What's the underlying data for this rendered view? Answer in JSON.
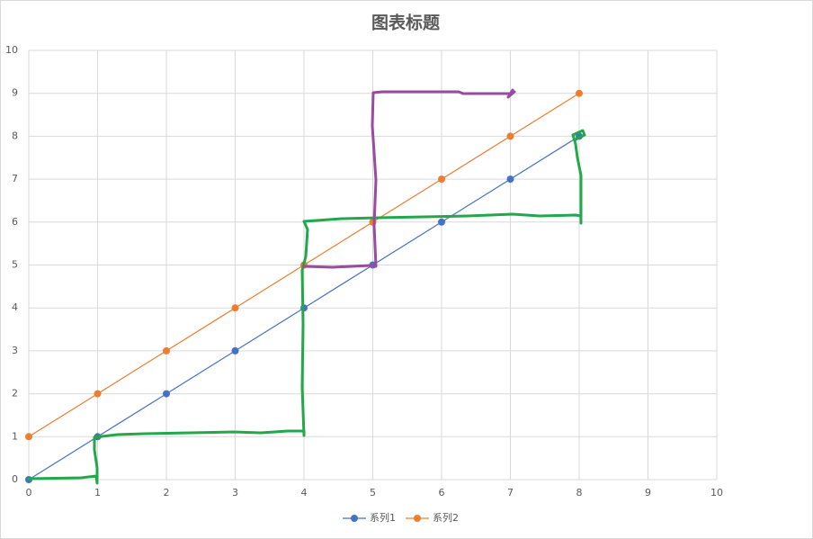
{
  "chart_data": {
    "type": "scatter",
    "title": "图表标题",
    "x": [
      0,
      1,
      2,
      3,
      4,
      5,
      6,
      7,
      8
    ],
    "series": [
      {
        "name": "系列1",
        "color": "#4472c4",
        "values": [
          0,
          1,
          2,
          3,
          4,
          5,
          6,
          7,
          8
        ]
      },
      {
        "name": "系列2",
        "color": "#ed7d31",
        "values": [
          1,
          2,
          3,
          4,
          5,
          6,
          7,
          8,
          9
        ]
      }
    ],
    "xlim": [
      0,
      10
    ],
    "ylim": [
      0,
      10
    ],
    "xticks": [
      0,
      1,
      2,
      3,
      4,
      5,
      6,
      7,
      8,
      9,
      10
    ],
    "yticks": [
      0,
      1,
      2,
      3,
      4,
      5,
      6,
      7,
      8,
      9,
      10
    ],
    "grid": true,
    "legend": "bottom"
  }
}
